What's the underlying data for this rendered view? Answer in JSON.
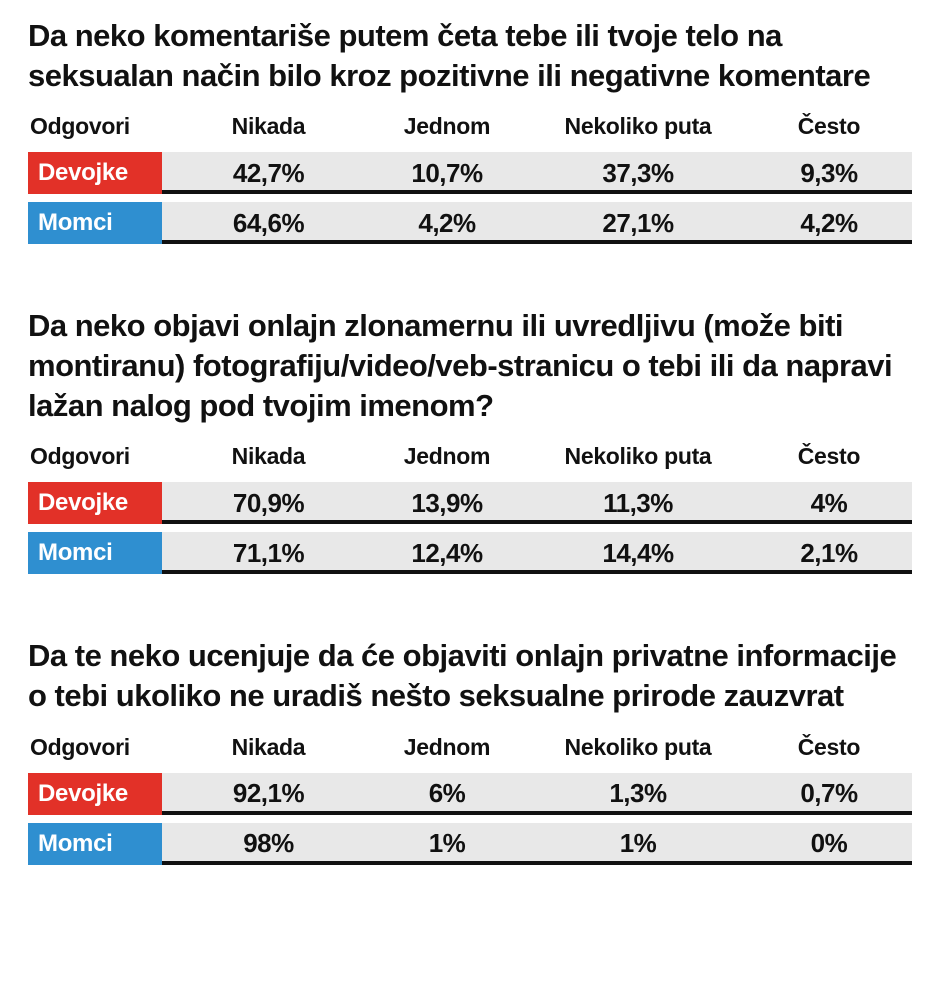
{
  "accent_colors": {
    "girls_red": "#e23128",
    "boys_blue": "#2f8fd0",
    "row_gray": "#e8e8e8",
    "rule_black": "#111111"
  },
  "chart_data": [
    {
      "type": "table",
      "title": "Da neko komentariše putem četa tebe ili tvoje telo na seksualan način bilo kroz pozitivne ili negativne komentare",
      "headers": [
        "Odgovori",
        "Nikada",
        "Jednom",
        "Nekoliko puta",
        "Često"
      ],
      "rows": [
        {
          "label": "Devojke",
          "color": "#e23128",
          "values": [
            "42,7%",
            "10,7%",
            "37,3%",
            "9,3%"
          ]
        },
        {
          "label": "Momci",
          "color": "#2f8fd0",
          "values": [
            "64,6%",
            "4,2%",
            "27,1%",
            "4,2%"
          ]
        }
      ]
    },
    {
      "type": "table",
      "title": "Da neko objavi onlajn zlonamernu ili uvredljivu (može biti montiranu) fotografiju/video/veb-stranicu o tebi ili da napravi lažan nalog pod tvojim imenom?",
      "headers": [
        "Odgovori",
        "Nikada",
        "Jednom",
        "Nekoliko puta",
        "Često"
      ],
      "rows": [
        {
          "label": "Devojke",
          "color": "#e23128",
          "values": [
            "70,9%",
            "13,9%",
            "11,3%",
            "4%"
          ]
        },
        {
          "label": "Momci",
          "color": "#2f8fd0",
          "values": [
            "71,1%",
            "12,4%",
            "14,4%",
            "2,1%"
          ]
        }
      ]
    },
    {
      "type": "table",
      "title": "Da te neko ucenjuje da će objaviti onlajn privatne informacije o tebi ukoliko ne uradiš nešto seksualne prirode zauzvrat",
      "headers": [
        "Odgovori",
        "Nikada",
        "Jednom",
        "Nekoliko puta",
        "Često"
      ],
      "rows": [
        {
          "label": "Devojke",
          "color": "#e23128",
          "values": [
            "92,1%",
            "6%",
            "1,3%",
            "0,7%"
          ]
        },
        {
          "label": "Momci",
          "color": "#2f8fd0",
          "values": [
            "98%",
            "1%",
            "1%",
            "0%"
          ]
        }
      ]
    }
  ]
}
